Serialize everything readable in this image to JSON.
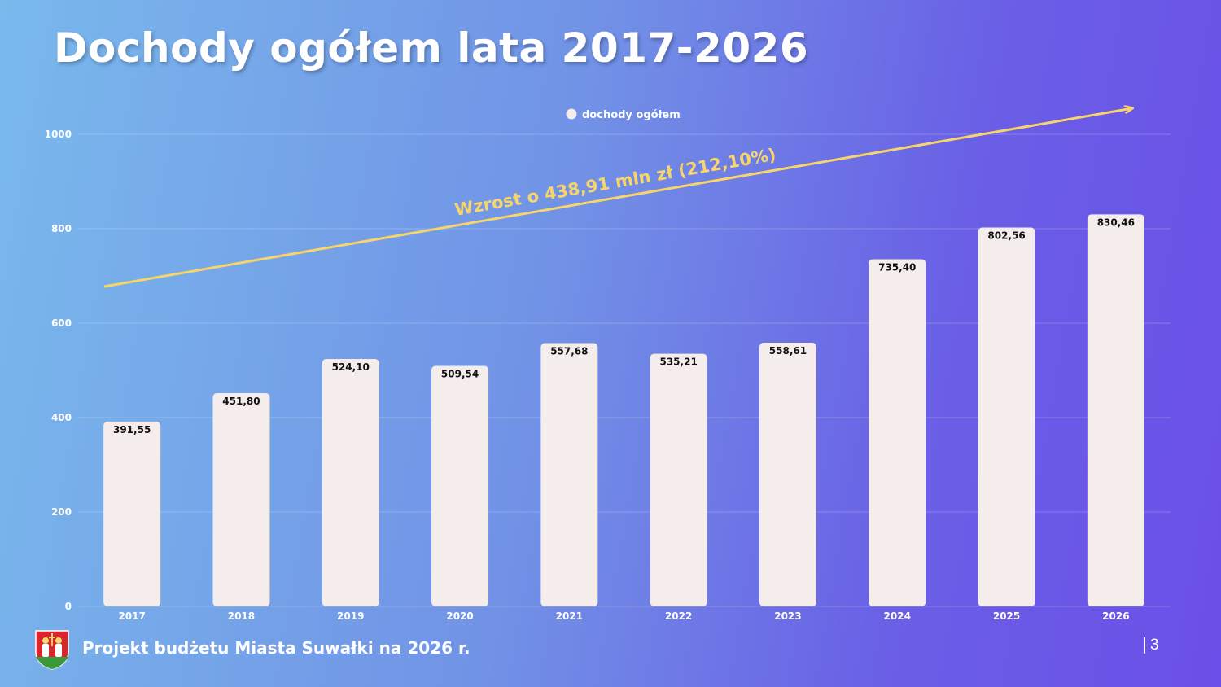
{
  "header": {
    "title": "Dochody ogółem lata 2017-2026"
  },
  "chart_data": {
    "type": "bar",
    "categories": [
      "2017",
      "2018",
      "2019",
      "2020",
      "2021",
      "2022",
      "2023",
      "2024",
      "2025",
      "2026"
    ],
    "series": [
      {
        "name": "dochody ogółem",
        "values": [
          391.55,
          451.8,
          524.1,
          509.54,
          557.68,
          535.21,
          558.61,
          735.4,
          802.56,
          830.46
        ],
        "labels": [
          "391,55",
          "451,80",
          "524,10",
          "509,54",
          "557,68",
          "535,21",
          "558,61",
          "735,40",
          "802,56",
          "830,46"
        ]
      }
    ],
    "ylim": [
      0,
      1000
    ],
    "yticks": [
      0,
      200,
      400,
      600,
      800,
      1000
    ],
    "grid": true,
    "legend_position": "top-center",
    "annotation": {
      "text": "Wzrost o 438,91 mln zł (212,10%)",
      "type": "trend-arrow"
    },
    "colors": {
      "bar": "#f5ecec",
      "arrow": "#f7d56b",
      "annotation_text": "#f7d56b",
      "grid": "#ffffff"
    }
  },
  "footer": {
    "text": "Projekt budżetu Miasta Suwałki na 2026 r.",
    "page_number": "3",
    "logo_icon": "suwalki-coat-of-arms-icon"
  }
}
